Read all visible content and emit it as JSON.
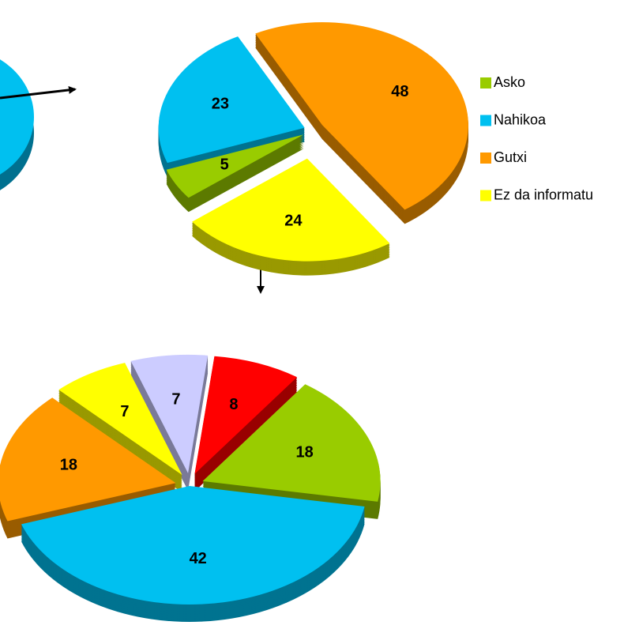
{
  "chart_data": [
    {
      "type": "pie",
      "categories": [
        "Asko",
        "Nahikoa",
        "Gutxi",
        "Ez da informatu"
      ],
      "values": [
        5,
        23,
        48,
        24
      ],
      "colors": [
        "#99cc00",
        "#00c0f0",
        "#ff9900",
        "#ffff00"
      ],
      "legend": "right"
    },
    {
      "type": "pie",
      "categories": [
        null,
        null,
        null,
        null,
        null,
        null
      ],
      "values": [
        42,
        18,
        7,
        7,
        8,
        18
      ],
      "colors": [
        "#00c0f0",
        "#ff9900",
        "#ffff00",
        "#ccccff",
        "#ff0000",
        "#99cc00"
      ]
    }
  ]
}
